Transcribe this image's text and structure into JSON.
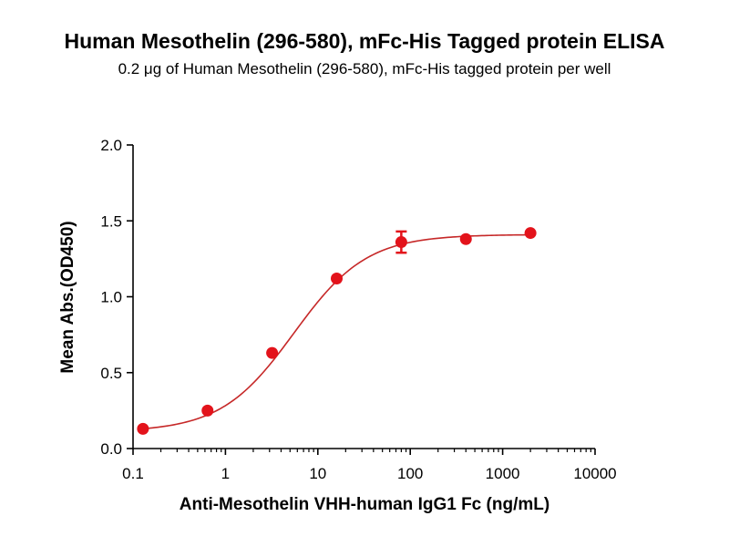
{
  "chart_data": {
    "type": "scatter",
    "title": "Human Mesothelin (296-580), mFc-His Tagged protein ELISA",
    "subtitle": "0.2 μg of Human Mesothelin (296-580), mFc-His tagged protein per well",
    "xlabel": "Anti-Mesothelin VHH-human IgG1 Fc (ng/mL)",
    "ylabel": "Mean Abs.(OD450)",
    "xscale": "log",
    "xlim": [
      0.1,
      10000
    ],
    "ylim": [
      0.0,
      2.0
    ],
    "x_tick_labels": [
      "0.1",
      "1",
      "10",
      "100",
      "1000",
      "10000"
    ],
    "y_tick_labels": [
      "0.0",
      "0.5",
      "1.0",
      "1.5",
      "2.0"
    ],
    "grid": false,
    "colors": {
      "series": "#e3131b",
      "curve": "#c62828",
      "axis": "#000000"
    },
    "series": [
      {
        "x": [
          0.128,
          0.64,
          3.2,
          16,
          80,
          400,
          2000
        ],
        "y": [
          0.13,
          0.25,
          0.63,
          1.12,
          1.36,
          1.38,
          1.42
        ],
        "error": [
          0,
          0,
          0,
          0,
          0.07,
          0,
          0
        ]
      }
    ],
    "fit": {
      "bottom": 0.11,
      "top": 1.41,
      "ec50": 5.5,
      "hill": 1.1
    }
  }
}
